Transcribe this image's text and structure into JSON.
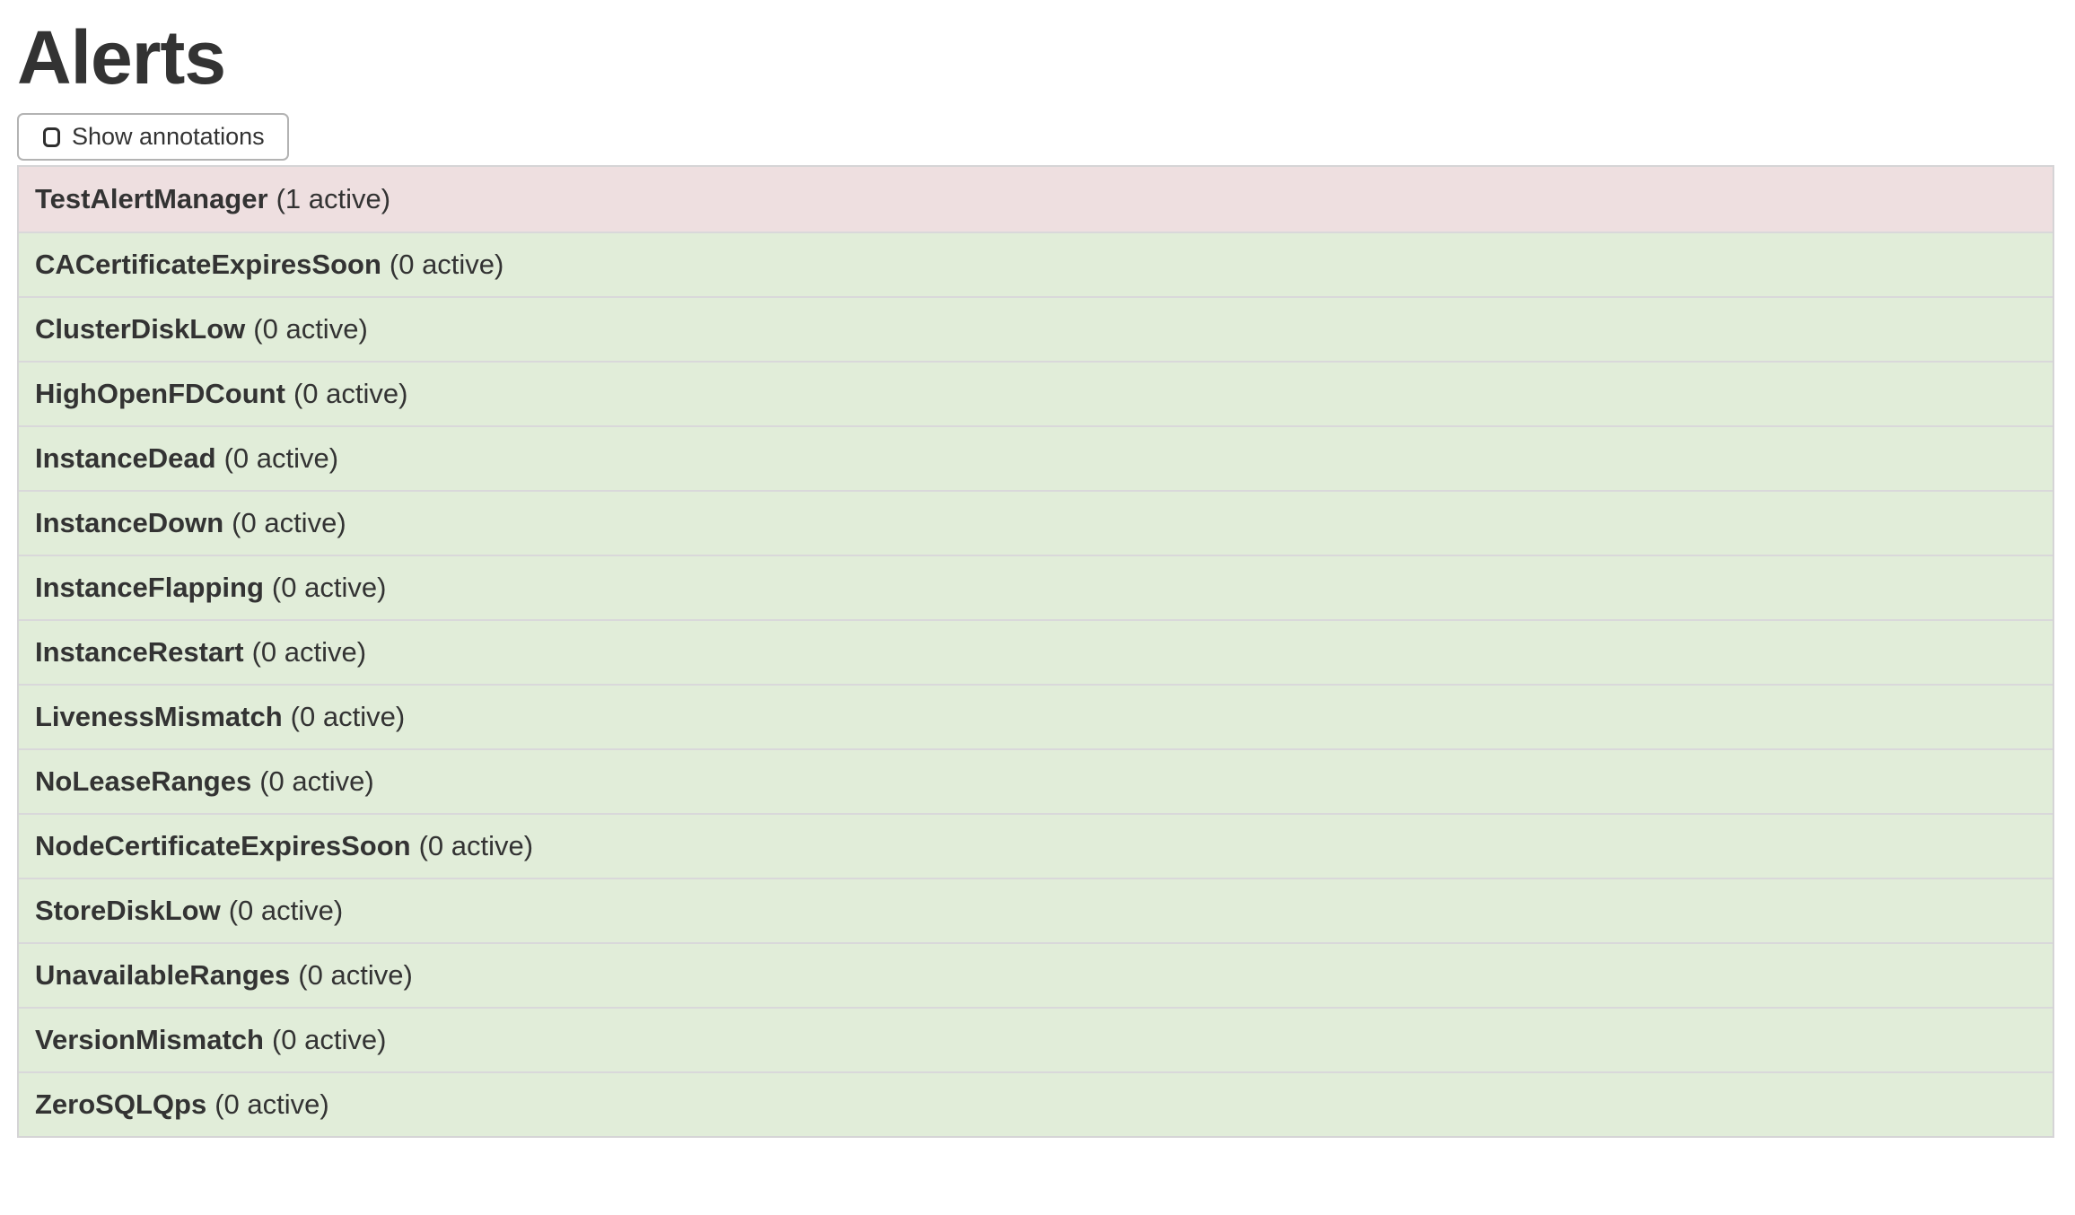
{
  "page": {
    "title": "Alerts"
  },
  "controls": {
    "show_annotations": {
      "label": "Show annotations",
      "checked": false
    }
  },
  "alerts": [
    {
      "name": "TestAlertManager",
      "active": 1,
      "active_label": "(1 active)",
      "status": "firing"
    },
    {
      "name": "CACertificateExpiresSoon",
      "active": 0,
      "active_label": "(0 active)",
      "status": "inactive"
    },
    {
      "name": "ClusterDiskLow",
      "active": 0,
      "active_label": "(0 active)",
      "status": "inactive"
    },
    {
      "name": "HighOpenFDCount",
      "active": 0,
      "active_label": "(0 active)",
      "status": "inactive"
    },
    {
      "name": "InstanceDead",
      "active": 0,
      "active_label": "(0 active)",
      "status": "inactive"
    },
    {
      "name": "InstanceDown",
      "active": 0,
      "active_label": "(0 active)",
      "status": "inactive"
    },
    {
      "name": "InstanceFlapping",
      "active": 0,
      "active_label": "(0 active)",
      "status": "inactive"
    },
    {
      "name": "InstanceRestart",
      "active": 0,
      "active_label": "(0 active)",
      "status": "inactive"
    },
    {
      "name": "LivenessMismatch",
      "active": 0,
      "active_label": "(0 active)",
      "status": "inactive"
    },
    {
      "name": "NoLeaseRanges",
      "active": 0,
      "active_label": "(0 active)",
      "status": "inactive"
    },
    {
      "name": "NodeCertificateExpiresSoon",
      "active": 0,
      "active_label": "(0 active)",
      "status": "inactive"
    },
    {
      "name": "StoreDiskLow",
      "active": 0,
      "active_label": "(0 active)",
      "status": "inactive"
    },
    {
      "name": "UnavailableRanges",
      "active": 0,
      "active_label": "(0 active)",
      "status": "inactive"
    },
    {
      "name": "VersionMismatch",
      "active": 0,
      "active_label": "(0 active)",
      "status": "inactive"
    },
    {
      "name": "ZeroSQLQps",
      "active": 0,
      "active_label": "(0 active)",
      "status": "inactive"
    }
  ],
  "theme": {
    "firing_bg": "#eedfe0",
    "inactive_bg": "#e1edd9",
    "table_border": "#d5d4d6",
    "row_border": "#d9d8da",
    "button_border": "#b3b3b3",
    "text": "#333333"
  }
}
